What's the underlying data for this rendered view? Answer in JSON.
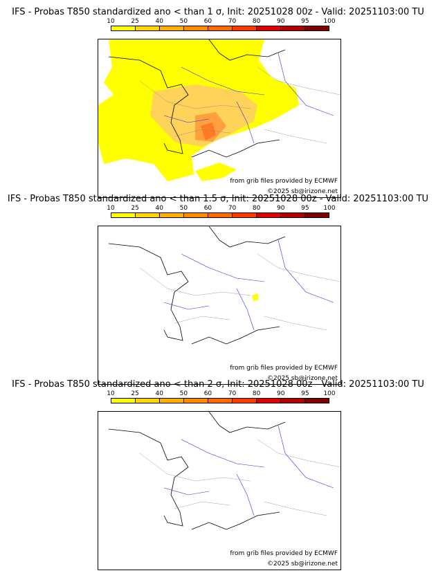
{
  "legend": {
    "ticks": [
      "10",
      "25",
      "40",
      "50",
      "60",
      "70",
      "80",
      "90",
      "95",
      "100"
    ],
    "colors": [
      "#ffff00",
      "#ffd700",
      "#ffb000",
      "#ff8c00",
      "#ff6a00",
      "#ff3a00",
      "#e00000",
      "#b00000",
      "#800000"
    ]
  },
  "panels": [
    {
      "title": "IFS - Probas T850  standardized ano < than 1 σ, Init: 20251028 00z - Valid: 20251103:00 TU",
      "credit_source": "from grib files provided by ECMWF",
      "credit_copyright": "©2025 sb@irizone.net"
    },
    {
      "title": "IFS - Probas T850  standardized ano < than 1.5 σ, Init: 20251028 00z - Valid: 20251103:00 TU",
      "credit_source": "from grib files provided by ECMWF",
      "credit_copyright": "©2025 sb@irizone.net"
    },
    {
      "title": "IFS - Probas T850  standardized ano < than 2 σ, Init: 20251028 00z - Valid: 20251103:00 TU",
      "credit_source": "from grib files provided by ECMWF",
      "credit_copyright": "©2025 sb@irizone.net"
    }
  ]
}
